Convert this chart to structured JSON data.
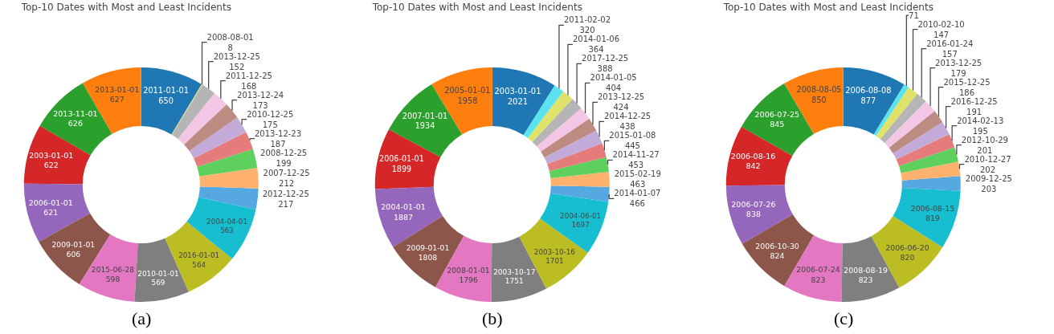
{
  "chart_data": [
    {
      "type": "donut",
      "title": "Top-10 Dates with Most and Least Incidents",
      "annotations": [
        "(a)"
      ],
      "data_labels": true,
      "categories": [
        "2011-01-01",
        "2013-01-01",
        "2013-11-01",
        "2003-01-01",
        "2006-01-01",
        "2009-01-01",
        "2015-06-28",
        "2010-01-01",
        "2016-01-01",
        "2004-04-01",
        "2012-12-25",
        "2007-12-25",
        "2008-12-25",
        "2013-12-23",
        "2010-12-25",
        "2013-12-24",
        "2011-12-25",
        "2013-12-25",
        "2008-08-01"
      ],
      "values": [
        650,
        627,
        626,
        622,
        621,
        606,
        598,
        569,
        564,
        563,
        217,
        212,
        199,
        187,
        175,
        173,
        168,
        152,
        8
      ],
      "colors": [
        "#1f77b4",
        "#ff7f0e",
        "#2ca02c",
        "#d62728",
        "#9467bd",
        "#8c564b",
        "#e377c2",
        "#7f7f7f",
        "#bcbd22",
        "#17becf",
        "#56a8e0",
        "#ffb26e",
        "#5ed05e",
        "#e57b7b",
        "#c3abd9",
        "#bc8b81",
        "#f2c6e4",
        "#b5b5b5",
        "#e1e26a"
      ]
    },
    {
      "type": "donut",
      "title": "Top-10 Dates with Most and Least Incidents",
      "annotations": [
        "(b)"
      ],
      "data_labels": true,
      "categories": [
        "2003-01-01",
        "2005-01-01",
        "2007-01-01",
        "2006-01-01",
        "2004-01-01",
        "2009-01-01",
        "2008-01-01",
        "2003-10-17",
        "2003-10-16",
        "2004-06-01",
        "2014-01-07",
        "2015-02-19",
        "2014-11-27",
        "2015-01-08",
        "2014-12-25",
        "2013-12-25",
        "2014-01-05",
        "2017-12-25",
        "2014-01-06",
        "2011-02-02"
      ],
      "values": [
        2021,
        1958,
        1934,
        1899,
        1887,
        1808,
        1796,
        1751,
        1701,
        1697,
        466,
        463,
        453,
        445,
        438,
        424,
        404,
        388,
        364,
        320
      ],
      "colors": [
        "#1f77b4",
        "#ff7f0e",
        "#2ca02c",
        "#d62728",
        "#9467bd",
        "#8c564b",
        "#e377c2",
        "#7f7f7f",
        "#bcbd22",
        "#17becf",
        "#56a8e0",
        "#ffb26e",
        "#5ed05e",
        "#e57b7b",
        "#c3abd9",
        "#bc8b81",
        "#f2c6e4",
        "#b5b5b5",
        "#e1e26a",
        "#5ae3ef"
      ]
    },
    {
      "type": "donut",
      "title": "Top-10 Dates with Most and Least Incidents",
      "annotations": [
        "(c)"
      ],
      "data_labels": true,
      "categories": [
        "2006-08-08",
        "2008-08-05",
        "2006-07-25",
        "2006-08-16",
        "2006-07-26",
        "2006-10-30",
        "2006-07-24",
        "2008-08-19",
        "2006-06-20",
        "2006-08-15",
        "2009-12-25",
        "2010-12-27",
        "2012-10-29",
        "2014-02-13",
        "2016-12-25",
        "2015-12-25",
        "2013-12-25",
        "2016-01-24",
        "2010-02-10",
        null
      ],
      "values": [
        877,
        850,
        845,
        842,
        838,
        824,
        823,
        823,
        820,
        819,
        203,
        202,
        201,
        195,
        191,
        186,
        179,
        157,
        147,
        71
      ],
      "colors": [
        "#1f77b4",
        "#ff7f0e",
        "#2ca02c",
        "#d62728",
        "#9467bd",
        "#8c564b",
        "#e377c2",
        "#7f7f7f",
        "#bcbd22",
        "#17becf",
        "#56a8e0",
        "#ffb26e",
        "#5ed05e",
        "#e57b7b",
        "#c3abd9",
        "#bc8b81",
        "#f2c6e4",
        "#b5b5b5",
        "#e1e26a",
        "#5ae3ef"
      ]
    }
  ]
}
